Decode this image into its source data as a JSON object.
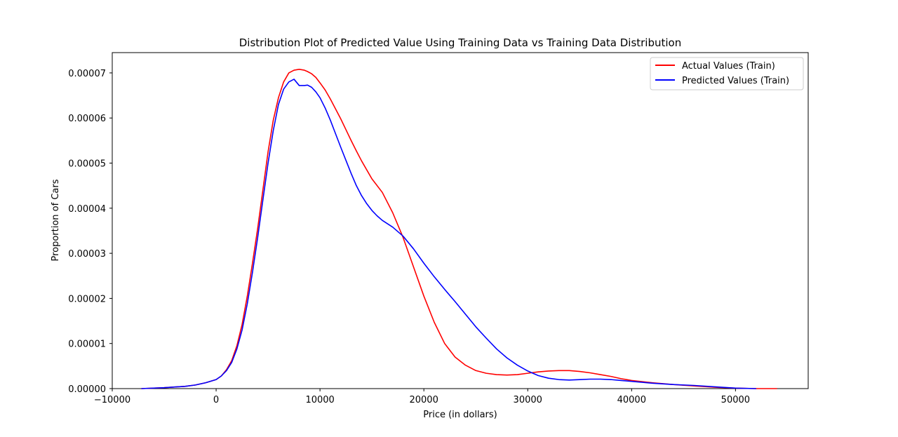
{
  "chart_data": {
    "type": "line",
    "title": "Distribution Plot of Predicted Value Using Training Data vs Training Data Distribution",
    "xlabel": "Price (in dollars)",
    "ylabel": "Proportion of Cars",
    "xlim": [
      -10000,
      57000
    ],
    "ylim": [
      0,
      7.45e-05
    ],
    "x_ticks": [
      -10000,
      0,
      10000,
      20000,
      30000,
      40000,
      50000
    ],
    "x_tick_labels": [
      "−10000",
      "0",
      "10000",
      "20000",
      "30000",
      "40000",
      "50000"
    ],
    "y_ticks": [
      0,
      1e-05,
      2e-05,
      3e-05,
      4e-05,
      5e-05,
      6e-05,
      7e-05
    ],
    "y_tick_labels": [
      "0.00000",
      "0.00001",
      "0.00002",
      "0.00003",
      "0.00004",
      "0.00005",
      "0.00006",
      "0.00007"
    ],
    "grid": false,
    "legend_position": "top-right",
    "series": [
      {
        "name": "Actual Values (Train)",
        "color": "#ff0000",
        "x": [
          -7200,
          -5000,
          -3000,
          -2000,
          -1000,
          0,
          500,
          1000,
          1500,
          2000,
          2500,
          3000,
          3500,
          4000,
          4500,
          5000,
          5500,
          6000,
          6500,
          7000,
          7500,
          8000,
          8500,
          8800,
          9200,
          9600,
          10000,
          10500,
          11000,
          11500,
          12000,
          12500,
          13000,
          13500,
          14000,
          15000,
          16000,
          17000,
          18000,
          19000,
          20000,
          21000,
          22000,
          23000,
          24000,
          25000,
          26000,
          27000,
          28000,
          29000,
          30000,
          31000,
          32000,
          33000,
          34000,
          35000,
          36000,
          37000,
          38000,
          39000,
          40000,
          42000,
          44000,
          46000,
          48000,
          50000,
          52000,
          54000
        ],
        "y": [
          0,
          2e-07,
          5e-07,
          8e-07,
          1.3e-06,
          2e-06,
          2.8e-06,
          4.2e-06,
          6.2e-06,
          9.5e-06,
          1.42e-05,
          2.05e-05,
          2.78e-05,
          3.55e-05,
          4.4e-05,
          5.25e-05,
          5.95e-05,
          6.45e-05,
          6.8e-05,
          7e-05,
          7.06e-05,
          7.08e-05,
          7.06e-05,
          7.03e-05,
          6.98e-05,
          6.9e-05,
          6.78e-05,
          6.62e-05,
          6.42e-05,
          6.2e-05,
          5.98e-05,
          5.74e-05,
          5.5e-05,
          5.27e-05,
          5.05e-05,
          4.65e-05,
          4.35e-05,
          3.9e-05,
          3.35e-05,
          2.7e-05,
          2.05e-05,
          1.47e-05,
          1e-05,
          7e-06,
          5.2e-06,
          4e-06,
          3.4e-06,
          3.1e-06,
          3e-06,
          3.1e-06,
          3.4e-06,
          3.7e-06,
          3.9e-06,
          4e-06,
          4e-06,
          3.8e-06,
          3.5e-06,
          3.1e-06,
          2.7e-06,
          2.2e-06,
          1.8e-06,
          1.3e-06,
          9e-07,
          6e-07,
          3e-07,
          1e-07,
          0,
          0
        ]
      },
      {
        "name": "Predicted Values (Train)",
        "color": "#0000ff",
        "x": [
          -7200,
          -5000,
          -3000,
          -2000,
          -1000,
          0,
          500,
          1000,
          1500,
          2000,
          2500,
          3000,
          3500,
          4000,
          4500,
          5000,
          5500,
          6000,
          6500,
          7000,
          7500,
          8000,
          8500,
          8800,
          9200,
          9600,
          10000,
          10500,
          11000,
          11500,
          12000,
          12500,
          13000,
          13500,
          14000,
          14500,
          15000,
          15500,
          16000,
          17000,
          18000,
          19000,
          20000,
          21000,
          22000,
          23000,
          24000,
          25000,
          26000,
          27000,
          28000,
          29000,
          30000,
          31000,
          32000,
          33000,
          34000,
          35000,
          36000,
          37000,
          38000,
          39000,
          40000,
          42000,
          44000,
          46000,
          48000,
          50000,
          52000
        ],
        "y": [
          0,
          2e-07,
          5e-07,
          8e-07,
          1.3e-06,
          2e-06,
          2.8e-06,
          4e-06,
          5.8e-06,
          8.8e-06,
          1.3e-05,
          1.88e-05,
          2.58e-05,
          3.35e-05,
          4.18e-05,
          5e-05,
          5.72e-05,
          6.3e-05,
          6.64e-05,
          6.8e-05,
          6.86e-05,
          6.72e-05,
          6.72e-05,
          6.73e-05,
          6.68e-05,
          6.58e-05,
          6.45e-05,
          6.22e-05,
          5.95e-05,
          5.65e-05,
          5.35e-05,
          5.06e-05,
          4.77e-05,
          4.5e-05,
          4.28e-05,
          4.1e-05,
          3.95e-05,
          3.83e-05,
          3.73e-05,
          3.58e-05,
          3.38e-05,
          3.1e-05,
          2.78e-05,
          2.48e-05,
          2.2e-05,
          1.93e-05,
          1.65e-05,
          1.37e-05,
          1.12e-05,
          8.8e-06,
          6.8e-06,
          5.2e-06,
          3.9e-06,
          2.9e-06,
          2.3e-06,
          2e-06,
          1.9e-06,
          2e-06,
          2.1e-06,
          2.1e-06,
          2e-06,
          1.8e-06,
          1.6e-06,
          1.2e-06,
          9e-07,
          7e-07,
          4e-07,
          1e-07,
          0
        ]
      }
    ]
  }
}
